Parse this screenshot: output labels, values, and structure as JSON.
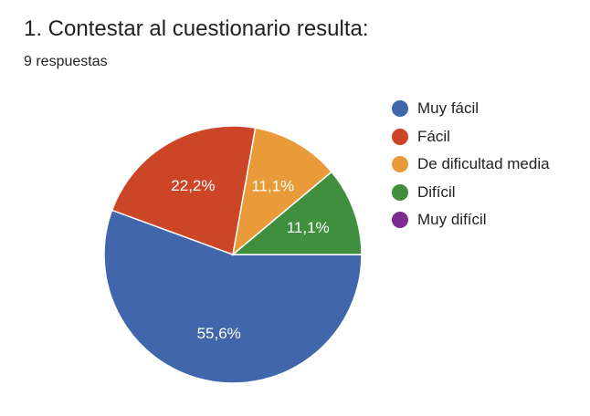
{
  "question": {
    "title": "1. Contestar al cuestionario resulta:",
    "responses": "9 respuestas"
  },
  "colors": {
    "muy_facil": "#4266ab",
    "facil": "#cc4527",
    "media": "#e89b38",
    "dificil": "#3f8f3f",
    "muy_dificil": "#7b2c91"
  },
  "chart_data": {
    "type": "pie",
    "title": "1. Contestar al cuestionario resulta:",
    "categories": [
      "Muy fácil",
      "Fácil",
      "De dificultad media",
      "Difícil",
      "Muy difícil"
    ],
    "values": [
      55.6,
      22.2,
      11.1,
      11.1,
      0
    ],
    "labels": [
      "55,6%",
      "22,2%",
      "11,1%",
      "11,1%",
      ""
    ],
    "colors": [
      "#4266ab",
      "#cc4527",
      "#e89b38",
      "#3f8f3f",
      "#7b2c91"
    ],
    "legend_position": "right"
  }
}
